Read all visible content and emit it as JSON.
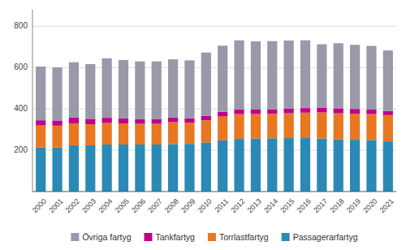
{
  "chart_data": {
    "type": "bar",
    "stacked": true,
    "grid": true,
    "legend": "bottom",
    "categories": [
      "2000",
      "2001",
      "2002",
      "2003",
      "2004",
      "2005",
      "2006",
      "2007",
      "2008",
      "2009",
      "2010",
      "2011",
      "2012",
      "2013",
      "2014",
      "2015",
      "2016",
      "2017",
      "2018",
      "2019",
      "2020",
      "2021"
    ],
    "series": [
      {
        "name": "Passagerarfartyg",
        "color": "#2a8ab5",
        "values": [
          213,
          213,
          224,
          224,
          228,
          228,
          228,
          228,
          230,
          231,
          238,
          248,
          255,
          257,
          258,
          259,
          259,
          257,
          252,
          251,
          250,
          243
        ]
      },
      {
        "name": "Torrlastfartyg",
        "color": "#e87722",
        "values": [
          107,
          106,
          106,
          102,
          104,
          102,
          100,
          100,
          106,
          102,
          107,
          116,
          120,
          118,
          118,
          120,
          123,
          126,
          127,
          126,
          125,
          127
        ]
      },
      {
        "name": "Tankfartyg",
        "color": "#c0008a",
        "values": [
          25,
          25,
          28,
          26,
          25,
          24,
          22,
          22,
          22,
          22,
          22,
          22,
          22,
          22,
          22,
          22,
          22,
          22,
          24,
          23,
          22,
          20
        ]
      },
      {
        "name": "Övriga fartyg",
        "color": "#9999aa",
        "values": [
          260,
          257,
          268,
          265,
          288,
          283,
          280,
          280,
          282,
          280,
          306,
          320,
          335,
          330,
          330,
          330,
          328,
          308,
          315,
          310,
          308,
          293
        ]
      }
    ],
    "ylim": [
      0,
      880
    ],
    "yticks": [
      200,
      400,
      600,
      800
    ]
  }
}
